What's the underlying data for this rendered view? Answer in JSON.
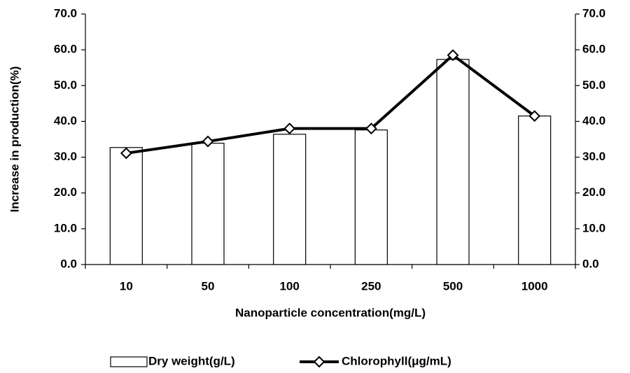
{
  "chart_data": {
    "type": "bar",
    "x_label": "Nanoparticle concentration(mg/L)",
    "y_label": "Increase in production(%)",
    "categories": [
      "10",
      "50",
      "100",
      "250",
      "500",
      "1000"
    ],
    "series": [
      {
        "name": "Dry weight(g/L)",
        "type": "bar",
        "color": "#ffffff",
        "values": [
          32.7,
          33.9,
          36.4,
          37.6,
          57.3,
          41.5
        ]
      },
      {
        "name": "Chlorophyll(μg/mL)",
        "type": "line",
        "axis": "y2",
        "color": "#000000",
        "values": [
          31.1,
          34.4,
          38.0,
          38.0,
          58.5,
          41.5
        ]
      }
    ],
    "ylim": [
      0,
      70
    ],
    "yticks": [
      {
        "value": 0,
        "label": "0.0"
      },
      {
        "value": 10,
        "label": "10.0"
      },
      {
        "value": 20,
        "label": "20.0"
      },
      {
        "value": 30,
        "label": "30.0"
      },
      {
        "value": 40,
        "label": "40.0"
      },
      {
        "value": 50,
        "label": "50.0"
      },
      {
        "value": 60,
        "label": "60.0"
      },
      {
        "value": 70,
        "label": "70.0"
      }
    ],
    "y2lim": [
      0,
      70
    ],
    "y2ticks": [
      {
        "value": 0,
        "label": "0.0"
      },
      {
        "value": 10,
        "label": "10.0"
      },
      {
        "value": 20,
        "label": "20.0"
      },
      {
        "value": 30,
        "label": "30.0"
      },
      {
        "value": 40,
        "label": "40.0"
      },
      {
        "value": 50,
        "label": "50.0"
      },
      {
        "value": 60,
        "label": "60.0"
      },
      {
        "value": 70,
        "label": "70.0"
      }
    ],
    "grid": false,
    "legend": "bottom"
  }
}
